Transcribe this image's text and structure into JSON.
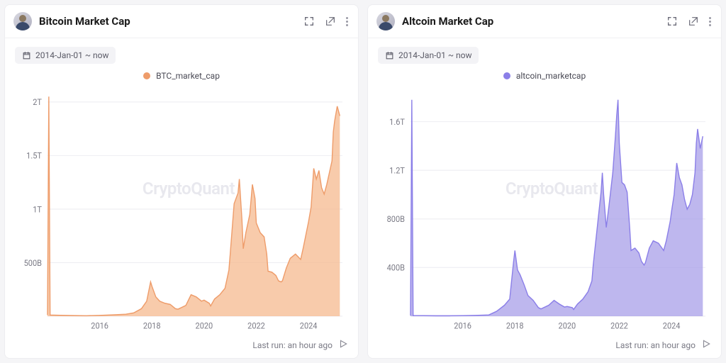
{
  "panels": [
    {
      "title": "Bitcoin Market Cap",
      "date_range": "2014-Jan-01 ~ now",
      "legend_label": "BTC_market_cap",
      "series_color": "#ee9c6a",
      "fill_color": "#f5b98f",
      "fill_opacity": 0.75,
      "watermark": "CryptoQuant",
      "last_run": "Last run: an hour ago",
      "y_ticks": [
        {
          "v": 500,
          "label": "500B"
        },
        {
          "v": 1000,
          "label": "1T"
        },
        {
          "v": 1500,
          "label": "1.5T"
        },
        {
          "v": 2000,
          "label": "2T"
        }
      ],
      "y_max": 2100,
      "x_start": 2014,
      "x_end": 2025.3,
      "x_ticks": [
        2016,
        2018,
        2020,
        2022,
        2024
      ],
      "data": [
        [
          2014.0,
          10
        ],
        [
          2014.05,
          2050
        ],
        [
          2014.1,
          10
        ],
        [
          2014.5,
          8
        ],
        [
          2015.0,
          5
        ],
        [
          2015.5,
          4
        ],
        [
          2016.0,
          7
        ],
        [
          2016.5,
          12
        ],
        [
          2017.0,
          18
        ],
        [
          2017.3,
          30
        ],
        [
          2017.6,
          70
        ],
        [
          2017.8,
          140
        ],
        [
          2017.95,
          320
        ],
        [
          2018.0,
          280
        ],
        [
          2018.15,
          180
        ],
        [
          2018.3,
          140
        ],
        [
          2018.5,
          120
        ],
        [
          2018.7,
          110
        ],
        [
          2018.9,
          70
        ],
        [
          2019.0,
          65
        ],
        [
          2019.3,
          100
        ],
        [
          2019.5,
          200
        ],
        [
          2019.7,
          180
        ],
        [
          2019.9,
          140
        ],
        [
          2020.0,
          150
        ],
        [
          2020.2,
          120
        ],
        [
          2020.25,
          95
        ],
        [
          2020.4,
          160
        ],
        [
          2020.6,
          200
        ],
        [
          2020.8,
          260
        ],
        [
          2020.95,
          430
        ],
        [
          2021.0,
          580
        ],
        [
          2021.15,
          1050
        ],
        [
          2021.3,
          1150
        ],
        [
          2021.35,
          1280
        ],
        [
          2021.45,
          900
        ],
        [
          2021.5,
          630
        ],
        [
          2021.6,
          780
        ],
        [
          2021.75,
          950
        ],
        [
          2021.85,
          1230
        ],
        [
          2021.95,
          1100
        ],
        [
          2022.0,
          870
        ],
        [
          2022.15,
          780
        ],
        [
          2022.3,
          740
        ],
        [
          2022.4,
          580
        ],
        [
          2022.45,
          420
        ],
        [
          2022.6,
          410
        ],
        [
          2022.75,
          380
        ],
        [
          2022.85,
          330
        ],
        [
          2022.95,
          320
        ],
        [
          2023.0,
          330
        ],
        [
          2023.15,
          450
        ],
        [
          2023.3,
          540
        ],
        [
          2023.5,
          580
        ],
        [
          2023.7,
          530
        ],
        [
          2023.8,
          640
        ],
        [
          2023.95,
          820
        ],
        [
          2024.0,
          880
        ],
        [
          2024.1,
          1020
        ],
        [
          2024.2,
          1380
        ],
        [
          2024.3,
          1280
        ],
        [
          2024.4,
          1360
        ],
        [
          2024.5,
          1200
        ],
        [
          2024.6,
          1140
        ],
        [
          2024.7,
          1230
        ],
        [
          2024.8,
          1340
        ],
        [
          2024.9,
          1450
        ],
        [
          2024.95,
          1720
        ],
        [
          2025.0,
          1820
        ],
        [
          2025.1,
          1960
        ],
        [
          2025.2,
          1870
        ]
      ]
    },
    {
      "title": "Altcoin Market Cap",
      "date_range": "2014-Jan-01 ~ now",
      "legend_label": "altcoin_marketcap",
      "series_color": "#8b7fe8",
      "fill_color": "#a59be8",
      "fill_opacity": 0.72,
      "watermark": "CryptoQuant",
      "last_run": "Last run: an hour ago",
      "y_ticks": [
        {
          "v": 400,
          "label": "400B"
        },
        {
          "v": 800,
          "label": "800B"
        },
        {
          "v": 1200,
          "label": "1.2T"
        },
        {
          "v": 1600,
          "label": "1.6T"
        }
      ],
      "y_max": 1850,
      "x_start": 2014,
      "x_end": 2025.3,
      "x_ticks": [
        2016,
        2018,
        2020,
        2022,
        2024
      ],
      "data": [
        [
          2014.0,
          5
        ],
        [
          2014.05,
          1780
        ],
        [
          2014.1,
          5
        ],
        [
          2014.5,
          4
        ],
        [
          2015.0,
          3
        ],
        [
          2015.5,
          3
        ],
        [
          2016.0,
          4
        ],
        [
          2016.5,
          6
        ],
        [
          2017.0,
          10
        ],
        [
          2017.3,
          40
        ],
        [
          2017.6,
          90
        ],
        [
          2017.8,
          140
        ],
        [
          2017.95,
          450
        ],
        [
          2018.0,
          540
        ],
        [
          2018.1,
          380
        ],
        [
          2018.2,
          340
        ],
        [
          2018.35,
          260
        ],
        [
          2018.5,
          170
        ],
        [
          2018.7,
          130
        ],
        [
          2018.9,
          70
        ],
        [
          2019.0,
          60
        ],
        [
          2019.3,
          90
        ],
        [
          2019.5,
          130
        ],
        [
          2019.7,
          100
        ],
        [
          2019.9,
          75
        ],
        [
          2020.0,
          80
        ],
        [
          2020.2,
          70
        ],
        [
          2020.25,
          55
        ],
        [
          2020.4,
          100
        ],
        [
          2020.6,
          140
        ],
        [
          2020.8,
          200
        ],
        [
          2020.95,
          290
        ],
        [
          2021.0,
          420
        ],
        [
          2021.15,
          720
        ],
        [
          2021.3,
          1020
        ],
        [
          2021.35,
          1180
        ],
        [
          2021.4,
          1000
        ],
        [
          2021.5,
          730
        ],
        [
          2021.6,
          900
        ],
        [
          2021.75,
          1180
        ],
        [
          2021.85,
          1480
        ],
        [
          2021.9,
          1650
        ],
        [
          2021.95,
          1780
        ],
        [
          2022.0,
          1420
        ],
        [
          2022.1,
          1100
        ],
        [
          2022.2,
          1080
        ],
        [
          2022.3,
          1020
        ],
        [
          2022.4,
          720
        ],
        [
          2022.45,
          540
        ],
        [
          2022.6,
          560
        ],
        [
          2022.75,
          520
        ],
        [
          2022.85,
          450
        ],
        [
          2022.95,
          420
        ],
        [
          2023.0,
          440
        ],
        [
          2023.15,
          560
        ],
        [
          2023.3,
          620
        ],
        [
          2023.5,
          600
        ],
        [
          2023.7,
          540
        ],
        [
          2023.8,
          620
        ],
        [
          2023.95,
          780
        ],
        [
          2024.0,
          860
        ],
        [
          2024.1,
          1000
        ],
        [
          2024.2,
          1260
        ],
        [
          2024.3,
          1140
        ],
        [
          2024.4,
          1080
        ],
        [
          2024.5,
          960
        ],
        [
          2024.6,
          880
        ],
        [
          2024.7,
          920
        ],
        [
          2024.8,
          1000
        ],
        [
          2024.9,
          1180
        ],
        [
          2024.95,
          1420
        ],
        [
          2025.0,
          1540
        ],
        [
          2025.1,
          1380
        ],
        [
          2025.2,
          1480
        ]
      ]
    }
  ]
}
